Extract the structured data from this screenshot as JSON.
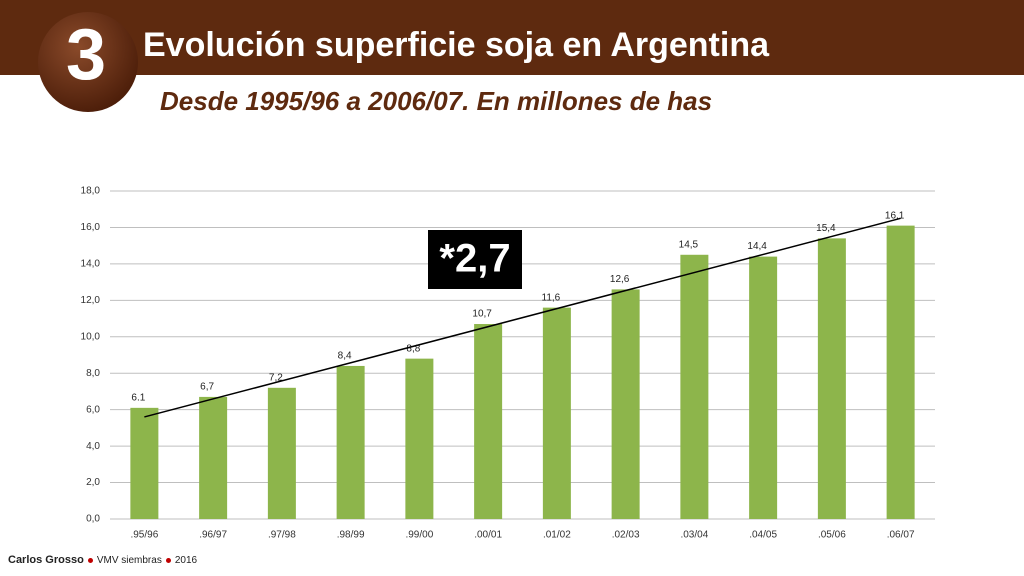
{
  "badge": "3",
  "header": {
    "title": "Evolución superficie soja en Argentina",
    "subtitle": "Desde 1995/96 a 2006/07. En millones de has"
  },
  "chart_data": {
    "type": "bar",
    "categories": [
      ".95/96",
      ".96/97",
      ".97/98",
      ".98/99",
      ".99/00",
      ".00/01",
      ".01/02",
      ".02/03",
      ".03/04",
      ".04/05",
      ".05/06",
      ".06/07"
    ],
    "values": [
      6.1,
      6.7,
      7.2,
      8.4,
      8.8,
      10.7,
      11.6,
      12.6,
      14.5,
      14.4,
      15.4,
      16.1
    ],
    "value_labels": [
      "6.1",
      "6,7",
      "7,2",
      "8,4",
      "8,8",
      "10,7",
      "11,6",
      "12,6",
      "14,5",
      "14,4",
      "15,4",
      "16.1"
    ],
    "color": "#8db54b",
    "trend_line": [
      5.6,
      16.5
    ],
    "annotation": "*2,7",
    "ylim": [
      0,
      18
    ],
    "yticks": [
      {
        "value": 0,
        "label": "0,0"
      },
      {
        "value": 2,
        "label": "2,0"
      },
      {
        "value": 4,
        "label": "4,0"
      },
      {
        "value": 6,
        "label": "6,0"
      },
      {
        "value": 8,
        "label": "8,0"
      },
      {
        "value": 10,
        "label": "10,0"
      },
      {
        "value": 12,
        "label": "12,0"
      },
      {
        "value": 14,
        "label": "14,0"
      },
      {
        "value": 16,
        "label": "16,0"
      },
      {
        "value": 18,
        "label": "18,0"
      }
    ],
    "grid": true
  },
  "footer": {
    "author": "Carlos Grosso",
    "source": "VMV siembras",
    "year": "2016"
  }
}
